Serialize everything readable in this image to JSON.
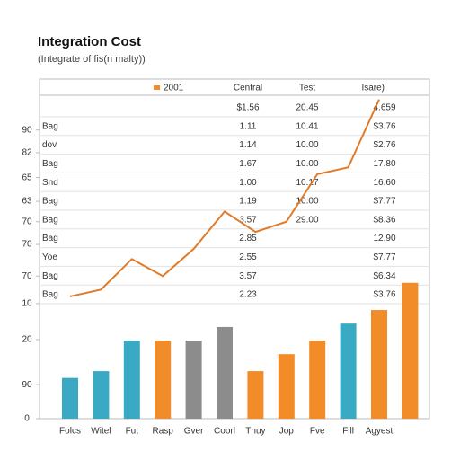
{
  "chart_data": {
    "type": "bar",
    "title": "Integration Cost",
    "subtitle": "(Integrate of fis(n malty))",
    "categories": [
      "Folcs",
      "Witel",
      "Fut",
      "Rasp",
      "Gver",
      "Coorl",
      "Thuy",
      "Jop",
      "Fve",
      "Fill",
      "Agyest",
      null
    ],
    "values": [
      12,
      14,
      23,
      23,
      23,
      27,
      14,
      19,
      23,
      28,
      32,
      40
    ],
    "colors": [
      "#3aa9c4",
      "#3aa9c4",
      "#3aa9c4",
      "#f28c28",
      "#8c8c8c",
      "#8c8c8c",
      "#f28c28",
      "#f28c28",
      "#f28c28",
      "#3aa9c4",
      "#f28c28",
      "#f28c28"
    ],
    "line": {
      "name": "2001",
      "color": "#e07b2a",
      "values": [
        36,
        38,
        47,
        42,
        50,
        61,
        55,
        58,
        72,
        74,
        94
      ]
    },
    "ylim": [
      0,
      100
    ],
    "yticks": [
      0,
      {
        "value": 10,
        "label": "90"
      },
      {
        "value": 23.3,
        "label": "20"
      },
      {
        "value": 33.9,
        "label": "10"
      },
      {
        "value": 42,
        "label": "70"
      },
      {
        "value": 51.3,
        "label": "70"
      },
      {
        "value": 58,
        "label": "70"
      },
      {
        "value": 64,
        "label": "63"
      },
      {
        "value": 71,
        "label": "65"
      },
      {
        "value": 78.3,
        "label": "82"
      },
      {
        "value": 85,
        "label": "90"
      }
    ],
    "table": {
      "columns": [
        "Central",
        "Test",
        "Isare)"
      ],
      "rows": [
        [
          null,
          "$1.56",
          "20.45",
          "4.659"
        ],
        [
          "Bag",
          "1.11",
          "10.41",
          "$3.76"
        ],
        [
          "dov",
          "1.14",
          "10.00",
          "$2.76"
        ],
        [
          "Bag",
          "1.67",
          "10.00",
          "17.80"
        ],
        [
          "Snd",
          "1.00",
          "10.17",
          "16.60"
        ],
        [
          "Bag",
          "1.19",
          "10.00",
          "$7.77"
        ],
        [
          "Bag",
          "3.57",
          "29.00",
          "$8.36"
        ],
        [
          "Bag",
          "2.85",
          null,
          "12.90"
        ],
        [
          "Yoe",
          "2.55",
          null,
          "$7.77"
        ],
        [
          "Bag",
          "3.57",
          null,
          "$6.34"
        ],
        [
          "Bag",
          "2.23",
          null,
          "$3.76"
        ]
      ]
    }
  }
}
